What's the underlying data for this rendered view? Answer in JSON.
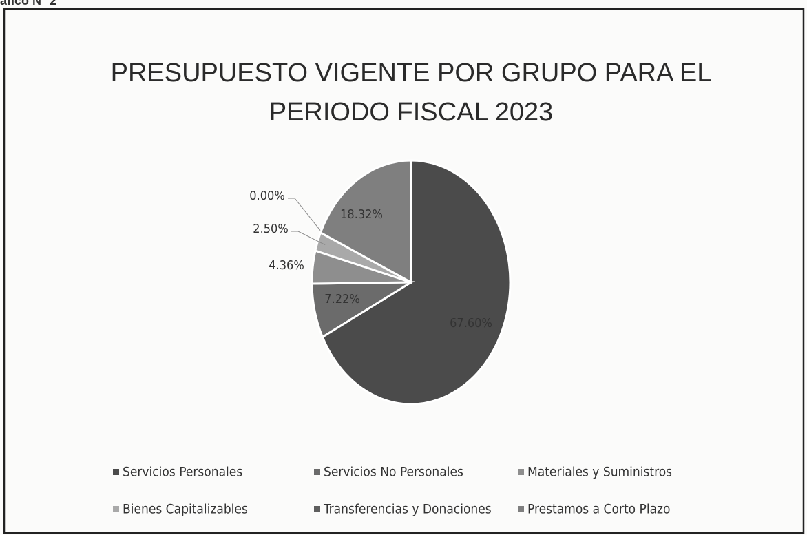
{
  "chart_data": {
    "type": "pie",
    "caption": "áfico N° 2",
    "title": [
      "PRESUPUESTO VIGENTE POR GRUPO PARA EL",
      "PERIODO FISCAL 2023"
    ],
    "categories": [
      "Servicios Personales",
      "Servicios No Personales",
      "Materiales y Suministros",
      "Bienes Capitalizables",
      "Transferencias y Donaciones",
      "Prestamos a Corto Plazo"
    ],
    "values": [
      67.6,
      7.22,
      4.36,
      2.5,
      0,
      18.32
    ],
    "value_labels": [
      "67.60%",
      "7.22%",
      "4.36%",
      "2.50%",
      "0.00%",
      "18.32%"
    ],
    "colors": [
      "#4b4b4b",
      "#6b6b6b",
      "#8e8e8e",
      "#a9a9a9",
      "#5e5e5e",
      "#7f7f7f"
    ],
    "legend": "bottom"
  }
}
